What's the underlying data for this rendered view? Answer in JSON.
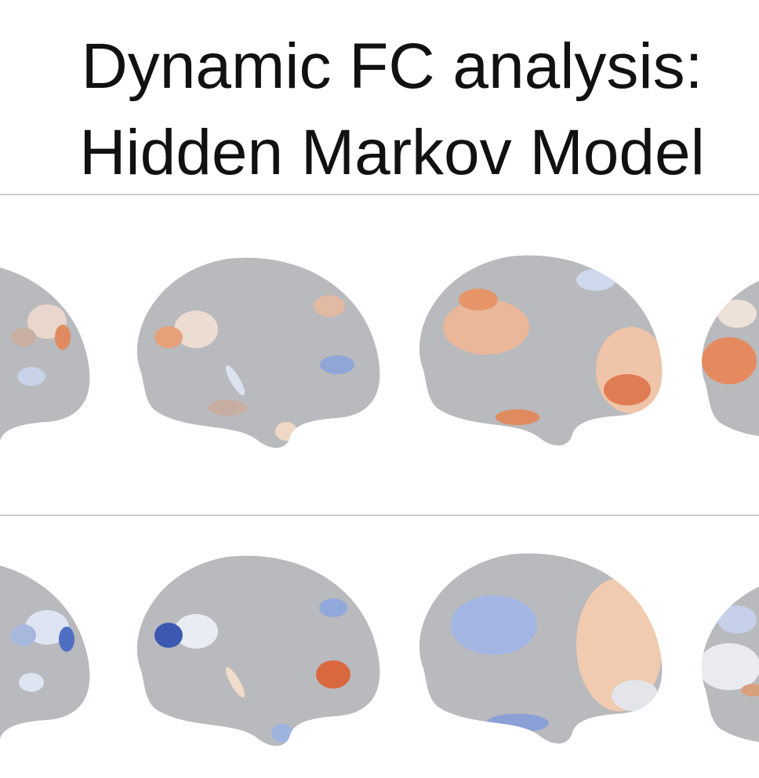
{
  "title": {
    "lines": [
      "Dynamic FC analysis:",
      "Hidden Markov Model"
    ]
  }
}
